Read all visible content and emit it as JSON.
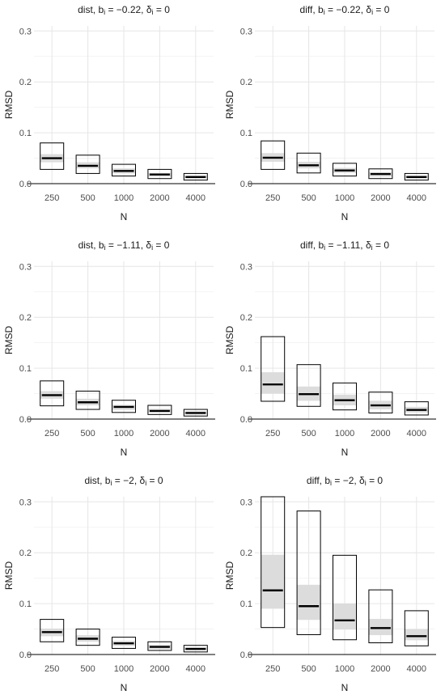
{
  "chart_data": [
    {
      "type": "box",
      "title": {
        "pre": "dist, b",
        "sub1": "i",
        "mid": " = −0.22, δ",
        "sub2": "i",
        "post": " = 0"
      },
      "xlabel": "N",
      "ylabel": "RMSD",
      "ylim": [
        0,
        0.31
      ],
      "yticks": [
        "0.0",
        "0.1",
        "0.2",
        "0.3"
      ],
      "categories": [
        "250",
        "500",
        "1000",
        "2000",
        "4000"
      ],
      "boxes": [
        {
          "outer_low": 0.028,
          "outer_high": 0.08,
          "inner_low": 0.042,
          "inner_high": 0.058,
          "median": 0.05
        },
        {
          "outer_low": 0.02,
          "outer_high": 0.056,
          "inner_low": 0.03,
          "inner_high": 0.042,
          "median": 0.035
        },
        {
          "outer_low": 0.015,
          "outer_high": 0.038,
          "inner_low": 0.02,
          "inner_high": 0.03,
          "median": 0.025
        },
        {
          "outer_low": 0.01,
          "outer_high": 0.028,
          "inner_low": 0.014,
          "inner_high": 0.021,
          "median": 0.018
        },
        {
          "outer_low": 0.007,
          "outer_high": 0.02,
          "inner_low": 0.01,
          "inner_high": 0.016,
          "median": 0.013
        }
      ]
    },
    {
      "type": "box",
      "title": {
        "pre": "diff, b",
        "sub1": "i",
        "mid": " = −0.22, δ",
        "sub2": "i",
        "post": " = 0"
      },
      "xlabel": "N",
      "ylabel": "RMSD",
      "ylim": [
        0,
        0.31
      ],
      "yticks": [
        "0.0",
        "0.1",
        "0.2",
        "0.3"
      ],
      "categories": [
        "250",
        "500",
        "1000",
        "2000",
        "4000"
      ],
      "boxes": [
        {
          "outer_low": 0.028,
          "outer_high": 0.084,
          "inner_low": 0.043,
          "inner_high": 0.06,
          "median": 0.051
        },
        {
          "outer_low": 0.021,
          "outer_high": 0.06,
          "inner_low": 0.03,
          "inner_high": 0.043,
          "median": 0.036
        },
        {
          "outer_low": 0.015,
          "outer_high": 0.04,
          "inner_low": 0.021,
          "inner_high": 0.031,
          "median": 0.026
        },
        {
          "outer_low": 0.01,
          "outer_high": 0.029,
          "inner_low": 0.014,
          "inner_high": 0.022,
          "median": 0.019
        },
        {
          "outer_low": 0.007,
          "outer_high": 0.02,
          "inner_low": 0.01,
          "inner_high": 0.016,
          "median": 0.013
        }
      ]
    },
    {
      "type": "box",
      "title": {
        "pre": "dist, b",
        "sub1": "i",
        "mid": " = −1.11, δ",
        "sub2": "i",
        "post": " = 0"
      },
      "xlabel": "N",
      "ylabel": "RMSD",
      "ylim": [
        0,
        0.31
      ],
      "yticks": [
        "0.0",
        "0.1",
        "0.2",
        "0.3"
      ],
      "categories": [
        "250",
        "500",
        "1000",
        "2000",
        "4000"
      ],
      "boxes": [
        {
          "outer_low": 0.026,
          "outer_high": 0.075,
          "inner_low": 0.04,
          "inner_high": 0.055,
          "median": 0.047
        },
        {
          "outer_low": 0.019,
          "outer_high": 0.055,
          "inner_low": 0.027,
          "inner_high": 0.04,
          "median": 0.033
        },
        {
          "outer_low": 0.013,
          "outer_high": 0.037,
          "inner_low": 0.018,
          "inner_high": 0.028,
          "median": 0.024
        },
        {
          "outer_low": 0.009,
          "outer_high": 0.027,
          "inner_low": 0.013,
          "inner_high": 0.02,
          "median": 0.016
        },
        {
          "outer_low": 0.006,
          "outer_high": 0.019,
          "inner_low": 0.009,
          "inner_high": 0.015,
          "median": 0.012
        }
      ]
    },
    {
      "type": "box",
      "title": {
        "pre": "diff, b",
        "sub1": "i",
        "mid": " = −1.11, δ",
        "sub2": "i",
        "post": " = 0"
      },
      "xlabel": "N",
      "ylabel": "RMSD",
      "ylim": [
        0,
        0.31
      ],
      "yticks": [
        "0.0",
        "0.1",
        "0.2",
        "0.3"
      ],
      "categories": [
        "250",
        "500",
        "1000",
        "2000",
        "4000"
      ],
      "boxes": [
        {
          "outer_low": 0.035,
          "outer_high": 0.162,
          "inner_low": 0.05,
          "inner_high": 0.092,
          "median": 0.068
        },
        {
          "outer_low": 0.025,
          "outer_high": 0.107,
          "inner_low": 0.036,
          "inner_high": 0.064,
          "median": 0.049
        },
        {
          "outer_low": 0.018,
          "outer_high": 0.071,
          "inner_low": 0.027,
          "inner_high": 0.048,
          "median": 0.037
        },
        {
          "outer_low": 0.012,
          "outer_high": 0.053,
          "inner_low": 0.019,
          "inner_high": 0.036,
          "median": 0.027
        },
        {
          "outer_low": 0.008,
          "outer_high": 0.034,
          "inner_low": 0.013,
          "inner_high": 0.024,
          "median": 0.018
        }
      ]
    },
    {
      "type": "box",
      "title": {
        "pre": "dist, b",
        "sub1": "i",
        "mid": " = −2, δ",
        "sub2": "i",
        "post": " = 0"
      },
      "xlabel": "N",
      "ylabel": "RMSD",
      "ylim": [
        0,
        0.31
      ],
      "yticks": [
        "0.0",
        "0.1",
        "0.2",
        "0.3"
      ],
      "categories": [
        "250",
        "500",
        "1000",
        "2000",
        "4000"
      ],
      "boxes": [
        {
          "outer_low": 0.025,
          "outer_high": 0.069,
          "inner_low": 0.036,
          "inner_high": 0.051,
          "median": 0.044
        },
        {
          "outer_low": 0.018,
          "outer_high": 0.05,
          "inner_low": 0.025,
          "inner_high": 0.038,
          "median": 0.031
        },
        {
          "outer_low": 0.012,
          "outer_high": 0.034,
          "inner_low": 0.017,
          "inner_high": 0.027,
          "median": 0.022
        },
        {
          "outer_low": 0.008,
          "outer_high": 0.025,
          "inner_low": 0.011,
          "inner_high": 0.019,
          "median": 0.015
        },
        {
          "outer_low": 0.005,
          "outer_high": 0.018,
          "inner_low": 0.008,
          "inner_high": 0.014,
          "median": 0.011
        }
      ]
    },
    {
      "type": "box",
      "title": {
        "pre": "diff, b",
        "sub1": "i",
        "mid": " = −2, δ",
        "sub2": "i",
        "post": " = 0"
      },
      "xlabel": "N",
      "ylabel": "RMSD",
      "ylim": [
        0,
        0.31
      ],
      "yticks": [
        "0.0",
        "0.1",
        "0.2",
        "0.3"
      ],
      "categories": [
        "250",
        "500",
        "1000",
        "2000",
        "4000"
      ],
      "boxes": [
        {
          "outer_low": 0.053,
          "outer_high": 0.31,
          "inner_low": 0.09,
          "inner_high": 0.196,
          "median": 0.126
        },
        {
          "outer_low": 0.039,
          "outer_high": 0.282,
          "inner_low": 0.068,
          "inner_high": 0.137,
          "median": 0.095
        },
        {
          "outer_low": 0.029,
          "outer_high": 0.195,
          "inner_low": 0.049,
          "inner_high": 0.1,
          "median": 0.067
        },
        {
          "outer_low": 0.023,
          "outer_high": 0.127,
          "inner_low": 0.038,
          "inner_high": 0.07,
          "median": 0.052
        },
        {
          "outer_low": 0.017,
          "outer_high": 0.086,
          "inner_low": 0.028,
          "inner_high": 0.05,
          "median": 0.036
        }
      ]
    }
  ]
}
